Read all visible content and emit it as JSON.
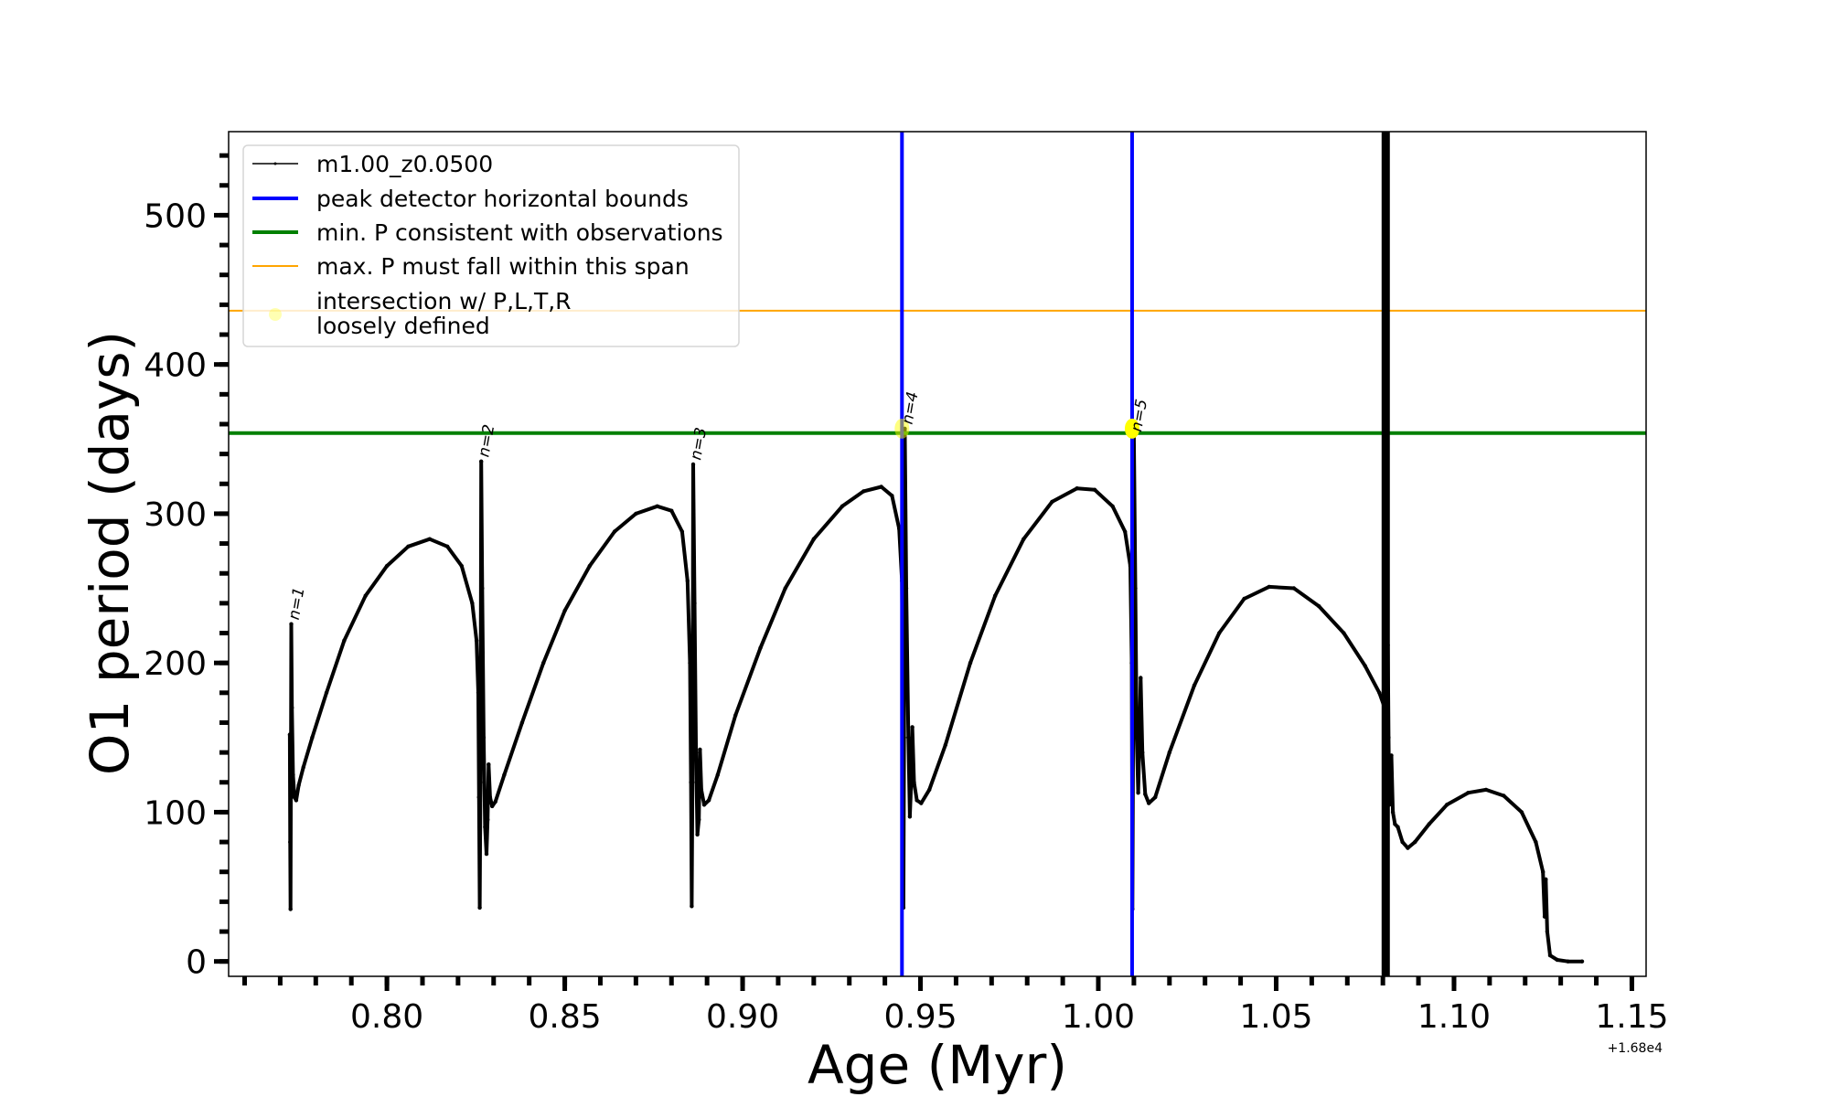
{
  "chart_data": {
    "type": "line",
    "title": "",
    "xlabel": "Age (Myr)",
    "ylabel": "O1 period (days)",
    "x_offset_label": "+1.68e4",
    "xlim": [
      0.7555,
      1.154
    ],
    "ylim": [
      -10,
      556
    ],
    "x_ticks": [
      0.8,
      0.85,
      0.9,
      0.95,
      1.0,
      1.05,
      1.1,
      1.15
    ],
    "x_tick_labels": [
      "0.80",
      "0.85",
      "0.90",
      "0.95",
      "1.00",
      "1.05",
      "1.10",
      "1.15"
    ],
    "x_minor_step": 0.01,
    "y_ticks": [
      0,
      100,
      200,
      300,
      400,
      500
    ],
    "y_tick_labels": [
      "0",
      "100",
      "200",
      "300",
      "400",
      "500"
    ],
    "y_minor_step": 20,
    "grid": false,
    "legend_position": "top-left",
    "legend": [
      {
        "label": "m1.00_z0.0500",
        "color": "#000000",
        "style": "line-marker"
      },
      {
        "label": "peak detector horizontal bounds",
        "color": "#0000ff",
        "style": "line"
      },
      {
        "label": "min. P consistent with observations",
        "color": "#008000",
        "style": "line"
      },
      {
        "label": "max. P must fall within this span",
        "color": "#ffa500",
        "style": "thin-line"
      },
      {
        "label_lines": [
          "intersection w/ P,L,T,R",
          "loosely defined"
        ],
        "color": "#ffff00",
        "style": "marker"
      }
    ],
    "series": [
      {
        "name": "m1.00_z0.0500",
        "color": "#000000",
        "points": [
          [
            0.7727,
            152
          ],
          [
            0.7728,
            80
          ],
          [
            0.7729,
            35
          ],
          [
            0.773,
            120
          ],
          [
            0.7731,
            226
          ],
          [
            0.7733,
            170
          ],
          [
            0.7736,
            125
          ],
          [
            0.774,
            110
          ],
          [
            0.7745,
            108
          ],
          [
            0.7752,
            118
          ],
          [
            0.7765,
            130
          ],
          [
            0.779,
            150
          ],
          [
            0.783,
            180
          ],
          [
            0.788,
            215
          ],
          [
            0.794,
            245
          ],
          [
            0.8,
            265
          ],
          [
            0.806,
            278
          ],
          [
            0.812,
            283
          ],
          [
            0.817,
            278
          ],
          [
            0.821,
            265
          ],
          [
            0.824,
            240
          ],
          [
            0.8252,
            215
          ],
          [
            0.8257,
            180
          ],
          [
            0.8259,
            110
          ],
          [
            0.8261,
            36
          ],
          [
            0.8263,
            120
          ],
          [
            0.8265,
            335
          ],
          [
            0.8268,
            250
          ],
          [
            0.8272,
            150
          ],
          [
            0.8276,
            90
          ],
          [
            0.828,
            72
          ],
          [
            0.8283,
            95
          ],
          [
            0.8286,
            132
          ],
          [
            0.829,
            110
          ],
          [
            0.8296,
            104
          ],
          [
            0.8305,
            107
          ],
          [
            0.833,
            125
          ],
          [
            0.838,
            160
          ],
          [
            0.844,
            200
          ],
          [
            0.85,
            235
          ],
          [
            0.857,
            265
          ],
          [
            0.864,
            288
          ],
          [
            0.87,
            300
          ],
          [
            0.876,
            305
          ],
          [
            0.88,
            302
          ],
          [
            0.883,
            288
          ],
          [
            0.8845,
            255
          ],
          [
            0.8852,
            200
          ],
          [
            0.8855,
            120
          ],
          [
            0.8857,
            37
          ],
          [
            0.8859,
            120
          ],
          [
            0.8861,
            333
          ],
          [
            0.8865,
            240
          ],
          [
            0.8869,
            140
          ],
          [
            0.8873,
            85
          ],
          [
            0.8877,
            95
          ],
          [
            0.888,
            142
          ],
          [
            0.8884,
            115
          ],
          [
            0.8892,
            105
          ],
          [
            0.8905,
            108
          ],
          [
            0.893,
            125
          ],
          [
            0.898,
            165
          ],
          [
            0.905,
            210
          ],
          [
            0.912,
            250
          ],
          [
            0.92,
            283
          ],
          [
            0.928,
            305
          ],
          [
            0.934,
            315
          ],
          [
            0.939,
            318
          ],
          [
            0.942,
            312
          ],
          [
            0.944,
            290
          ],
          [
            0.9448,
            255
          ],
          [
            0.9451,
            160
          ],
          [
            0.9452,
            36
          ],
          [
            0.9454,
            150
          ],
          [
            0.9456,
            357
          ],
          [
            0.946,
            250
          ],
          [
            0.9466,
            150
          ],
          [
            0.947,
            97
          ],
          [
            0.9474,
            120
          ],
          [
            0.9477,
            157
          ],
          [
            0.9482,
            120
          ],
          [
            0.949,
            108
          ],
          [
            0.9502,
            106
          ],
          [
            0.9525,
            115
          ],
          [
            0.957,
            145
          ],
          [
            0.964,
            200
          ],
          [
            0.971,
            245
          ],
          [
            0.979,
            283
          ],
          [
            0.987,
            308
          ],
          [
            0.994,
            317
          ],
          [
            0.999,
            316
          ],
          [
            1.004,
            305
          ],
          [
            1.0075,
            288
          ],
          [
            1.009,
            265
          ],
          [
            1.0094,
            200
          ],
          [
            1.0096,
            35
          ],
          [
            1.0098,
            160
          ],
          [
            1.01,
            352
          ],
          [
            1.0104,
            250
          ],
          [
            1.0108,
            150
          ],
          [
            1.0112,
            113
          ],
          [
            1.0116,
            150
          ],
          [
            1.0119,
            190
          ],
          [
            1.0124,
            140
          ],
          [
            1.0132,
            112
          ],
          [
            1.0142,
            106
          ],
          [
            1.016,
            110
          ],
          [
            1.02,
            140
          ],
          [
            1.027,
            185
          ],
          [
            1.034,
            220
          ],
          [
            1.041,
            243
          ],
          [
            1.048,
            251
          ],
          [
            1.055,
            250
          ],
          [
            1.062,
            238
          ],
          [
            1.069,
            220
          ],
          [
            1.075,
            198
          ],
          [
            1.079,
            180
          ],
          [
            1.0808,
            168
          ],
          [
            1.081,
            120
          ],
          [
            1.0811,
            27
          ],
          [
            1.0812,
            100
          ],
          [
            1.0814,
            212
          ],
          [
            1.0816,
            150
          ],
          [
            1.0818,
            105
          ],
          [
            1.0821,
            115
          ],
          [
            1.0824,
            138
          ],
          [
            1.0828,
            100
          ],
          [
            1.0834,
            92
          ],
          [
            1.0842,
            90
          ],
          [
            1.0855,
            80
          ],
          [
            1.087,
            76
          ],
          [
            1.089,
            80
          ],
          [
            1.093,
            92
          ],
          [
            1.098,
            105
          ],
          [
            1.104,
            113
          ],
          [
            1.109,
            115
          ],
          [
            1.114,
            111
          ],
          [
            1.119,
            100
          ],
          [
            1.123,
            80
          ],
          [
            1.125,
            60
          ],
          [
            1.1255,
            30
          ],
          [
            1.1258,
            55
          ],
          [
            1.1262,
            20
          ],
          [
            1.127,
            4
          ],
          [
            1.129,
            1
          ],
          [
            1.132,
            0
          ],
          [
            1.136,
            0
          ]
        ]
      }
    ],
    "vertical_lines": [
      {
        "name": "peak detector bound left",
        "x": 0.9448,
        "color": "#0000ff"
      },
      {
        "name": "peak detector bound right",
        "x": 1.0095,
        "color": "#0000ff"
      },
      {
        "name": "thick black segment",
        "x": 1.0808,
        "color": "#000000"
      }
    ],
    "horizontal_lines": [
      {
        "name": "min. P consistent with observations",
        "y": 354,
        "color": "#008000"
      },
      {
        "name": "max. P must fall within this span",
        "y": 436,
        "color": "#ffa500"
      }
    ],
    "intersection_points": [
      {
        "x": 0.9448,
        "y": 357,
        "alpha": 0.5
      },
      {
        "x": 1.0095,
        "y": 357,
        "alpha": 1.0
      }
    ],
    "annotations": [
      {
        "text": "n=1",
        "x": 0.7731,
        "y": 226
      },
      {
        "text": "n=2",
        "x": 0.8265,
        "y": 335
      },
      {
        "text": "n=3",
        "x": 0.8861,
        "y": 333
      },
      {
        "text": "n=4",
        "x": 0.9456,
        "y": 357
      },
      {
        "text": "n=5",
        "x": 1.01,
        "y": 352
      }
    ]
  }
}
